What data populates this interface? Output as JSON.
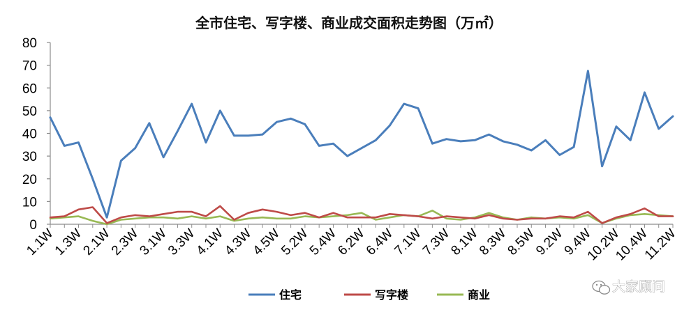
{
  "chart_data": {
    "type": "line",
    "title": "全市住宅、写字楼、商业成交面积走势图（万㎡）",
    "xlabel": "",
    "ylabel": "",
    "ylim": [
      0,
      80
    ],
    "yticks": [
      "0",
      "10",
      "20",
      "30",
      "40",
      "50",
      "60",
      "70",
      "80"
    ],
    "grid": false,
    "legend_position": "bottom",
    "x": [
      "1.1W",
      "1.2W",
      "1.3W",
      "1.4W",
      "2.1W",
      "2.2W",
      "2.3W",
      "2.4W",
      "3.1W",
      "3.2W",
      "3.3W",
      "3.4W",
      "4.1W",
      "4.2W",
      "4.3W",
      "4.4W",
      "4.5W",
      "5.1W",
      "5.2W",
      "5.3W",
      "5.4W",
      "6.1W",
      "6.2W",
      "6.3W",
      "6.4W",
      "6.5W",
      "7.1W",
      "7.2W",
      "7.3W",
      "7.4W",
      "8.1W",
      "8.2W",
      "8.3W",
      "8.4W",
      "8.5W",
      "9.1W",
      "9.2W",
      "9.3W",
      "9.4W",
      "10.1W",
      "10.2W",
      "10.3W",
      "10.4W",
      "11.1W",
      "11.2W"
    ],
    "xtick_labels": [
      "1.1W",
      "1.3W",
      "2.1W",
      "2.3W",
      "3.1W",
      "3.3W",
      "4.1W",
      "4.3W",
      "4.5W",
      "5.2W",
      "5.4W",
      "6.2W",
      "6.4W",
      "7.1W",
      "7.3W",
      "8.1W",
      "8.3W",
      "8.5W",
      "9.2W",
      "9.4W",
      "10.2W",
      "10.4W",
      "11.2W"
    ],
    "series": [
      {
        "name": "住宅",
        "color": "#4a7ebb",
        "values": [
          47,
          34.5,
          36,
          20,
          3,
          28,
          33.5,
          44.5,
          29.5,
          41,
          53,
          36,
          50,
          39,
          39,
          39.5,
          45,
          46.5,
          44,
          34.5,
          35.5,
          30,
          33.5,
          37,
          43.5,
          53,
          51,
          35.5,
          37.5,
          36.5,
          37,
          39.5,
          36.5,
          35,
          32.5,
          37,
          30.5,
          34,
          67.5,
          25.5,
          43,
          37,
          58,
          42,
          47.5
        ]
      },
      {
        "name": "写字楼",
        "color": "#be4b48",
        "values": [
          3,
          3.5,
          6.5,
          7.5,
          0.5,
          3,
          4,
          3.5,
          4.5,
          5.5,
          5.5,
          3.5,
          8,
          2,
          5,
          6.5,
          5.5,
          4,
          5,
          3,
          5,
          3,
          3,
          3,
          4.5,
          4,
          3.5,
          2.5,
          3.5,
          3,
          2.5,
          4,
          2.5,
          2,
          2.5,
          2.5,
          3.5,
          3,
          5.5,
          0.5,
          3,
          4.5,
          7,
          3.5,
          3.5
        ]
      },
      {
        "name": "商业",
        "color": "#98b954",
        "values": [
          2.5,
          3,
          3.5,
          1.5,
          0,
          2,
          2.5,
          3,
          3,
          2.5,
          3.5,
          2.5,
          3.5,
          1.5,
          2.5,
          3,
          2.5,
          2.5,
          3.5,
          3,
          3.5,
          4,
          5,
          2,
          3,
          4,
          3.5,
          6,
          2.5,
          2,
          3,
          5,
          3,
          2,
          3,
          2.5,
          3,
          2.5,
          4,
          0.5,
          2.5,
          4,
          4.5,
          4,
          3.5
        ]
      }
    ]
  },
  "watermark": {
    "text": "大家顾问",
    "icon": "wechat-icon"
  }
}
